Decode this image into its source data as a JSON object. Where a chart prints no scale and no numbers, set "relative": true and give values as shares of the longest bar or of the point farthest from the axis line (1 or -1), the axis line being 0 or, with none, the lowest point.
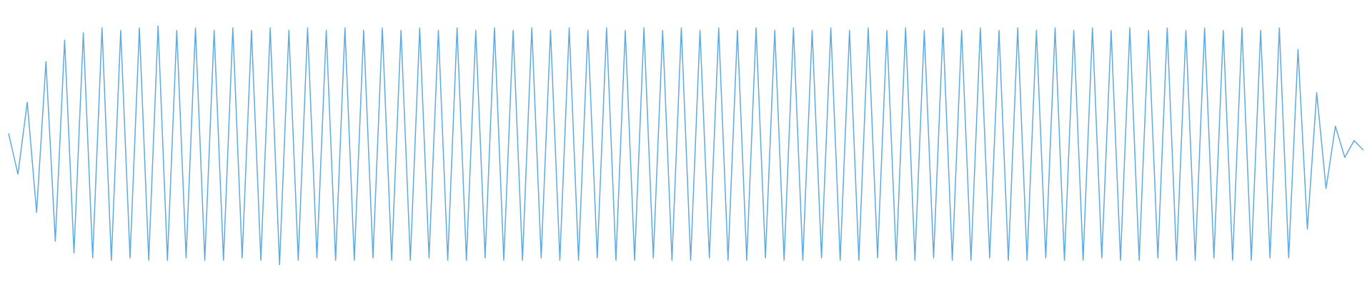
{
  "chart_data": {
    "type": "line",
    "relative": true,
    "color": "#5dabe2",
    "categories": [
      null,
      null,
      null,
      null,
      null,
      null,
      null,
      null,
      null,
      null,
      null,
      null,
      null,
      null,
      null,
      null,
      null,
      null,
      null,
      null,
      null,
      null,
      null,
      null,
      null,
      null,
      null,
      null,
      null,
      null,
      null,
      null,
      null,
      null,
      null,
      null,
      null,
      null,
      null,
      null,
      null,
      null,
      null,
      null,
      null,
      null,
      null,
      null,
      null,
      null,
      null,
      null,
      null,
      null,
      null,
      null,
      null,
      null,
      null,
      null,
      null,
      null,
      null,
      null,
      null,
      null,
      null,
      null,
      null,
      null,
      null,
      null,
      null,
      null,
      null,
      null,
      null,
      null,
      null,
      null,
      null,
      null,
      null,
      null,
      null,
      null,
      null,
      null,
      null,
      null,
      null,
      null,
      null,
      null,
      null,
      null,
      null,
      null,
      null,
      null,
      null,
      null,
      null,
      null,
      null,
      null,
      null,
      null,
      null,
      null,
      null,
      null,
      null,
      null,
      null,
      null,
      null,
      null,
      null,
      null,
      null,
      null,
      null,
      null,
      null,
      null,
      null,
      null,
      null,
      null,
      null,
      null,
      null,
      null,
      null,
      null,
      null,
      null,
      null,
      null,
      null,
      null,
      null,
      null,
      null,
      null
    ],
    "values": [
      0.55,
      0.38,
      0.68,
      0.22,
      0.85,
      0.1,
      0.94,
      0.05,
      0.97,
      0.03,
      0.99,
      0.02,
      0.98,
      0.03,
      0.99,
      0.02,
      1.0,
      0.02,
      0.98,
      0.03,
      0.99,
      0.02,
      0.98,
      0.02,
      0.99,
      0.03,
      0.98,
      0.02,
      0.99,
      0,
      0.98,
      0.02,
      0.99,
      0.03,
      0.98,
      0.02,
      0.99,
      0.02,
      0.98,
      0.03,
      0.99,
      0.02,
      0.98,
      0.02,
      0.99,
      0.03,
      0.98,
      0.02,
      0.99,
      0.02,
      0.98,
      0.03,
      0.99,
      0.02,
      0.98,
      0.02,
      0.99,
      0.03,
      0.98,
      0.02,
      0.99,
      0.02,
      0.98,
      0.03,
      0.99,
      0.02,
      0.98,
      0.02,
      0.99,
      0.03,
      0.98,
      0.02,
      0.99,
      0.02,
      0.98,
      0.03,
      0.99,
      0.02,
      0.98,
      0.02,
      0.99,
      0.03,
      0.98,
      0.02,
      0.99,
      0.02,
      0.98,
      0.03,
      0.99,
      0.02,
      0.98,
      0.02,
      0.99,
      0.03,
      0.98,
      0.02,
      0.99,
      0.02,
      0.98,
      0.03,
      0.99,
      0.02,
      0.98,
      0.02,
      0.99,
      0.03,
      0.98,
      0.02,
      0.99,
      0.02,
      0.98,
      0.03,
      0.99,
      0.02,
      0.98,
      0.02,
      0.99,
      0.03,
      0.98,
      0.02,
      0.99,
      0.02,
      0.98,
      0.03,
      0.99,
      0.02,
      0.98,
      0.02,
      0.99,
      0.03,
      0.98,
      0.02,
      0.99,
      0.02,
      0.98,
      0.03,
      0.99,
      0.03,
      0.9,
      0.15,
      0.72,
      0.32,
      0.58,
      0.45,
      0.52,
      0.48
    ]
  }
}
